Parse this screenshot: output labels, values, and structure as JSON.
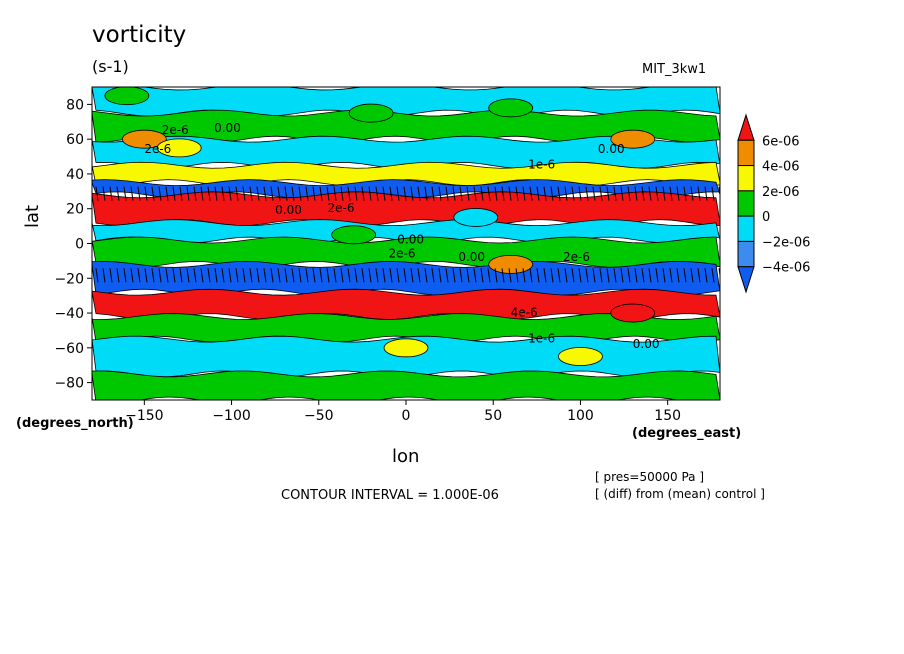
{
  "chart_data": {
    "type": "heatmap",
    "title": "vorticity",
    "units": "(s-1)",
    "dataset": "MIT_3kw1",
    "xlabel": "lon",
    "ylabel": "lat",
    "x_units": "(degrees_east)",
    "y_units": "(degrees_north)",
    "xlim": [
      -180,
      180
    ],
    "ylim": [
      -90,
      90
    ],
    "x_ticks": [
      -150,
      -100,
      -50,
      0,
      50,
      100,
      150
    ],
    "y_ticks": [
      80,
      60,
      40,
      20,
      0,
      -20,
      -40,
      -60,
      -80
    ],
    "contour_interval": "CONTOUR INTERVAL = 1.000E-06",
    "annotations": [
      "[ pres=50000 Pa ]",
      "[ (diff) from (mean) control ]"
    ],
    "contour_labels": [
      "2e-6",
      "0.00",
      "2e-6",
      "0.00",
      "2e-6",
      "0.00",
      "2e-6",
      "0.00",
      "1e-6",
      "0.00",
      "2e-6",
      "4e-6",
      "1e-6",
      "0.00"
    ],
    "legend": {
      "placement": "right",
      "labels": [
        "6e-06",
        "4e-06",
        "2e-06",
        "0",
        "-2e-06",
        "-4e-06"
      ],
      "colors": [
        "#0f5cf0",
        "#3c8cf0",
        "#00dcf8",
        "#00c800",
        "#f8f800",
        "#f08c00",
        "#f01414"
      ]
    },
    "bands": [
      {
        "lat": [
          75,
          90
        ],
        "value": -1e-06
      },
      {
        "lat": [
          60,
          75
        ],
        "value": 1e-06
      },
      {
        "lat": [
          45,
          60
        ],
        "value": -1e-06
      },
      {
        "lat": [
          35,
          45
        ],
        "value": 3e-06
      },
      {
        "lat": [
          28,
          35
        ],
        "value": -5e-06
      },
      {
        "lat": [
          12,
          28
        ],
        "value": 6e-06
      },
      {
        "lat": [
          2,
          12
        ],
        "value": -1e-06
      },
      {
        "lat": [
          -12,
          2
        ],
        "value": 1e-06
      },
      {
        "lat": [
          -28,
          -12
        ],
        "value": -5e-06
      },
      {
        "lat": [
          -42,
          -28
        ],
        "value": 6e-06
      },
      {
        "lat": [
          -55,
          -42
        ],
        "value": 1e-06
      },
      {
        "lat": [
          -75,
          -55
        ],
        "value": -1e-06
      },
      {
        "lat": [
          -90,
          -75
        ],
        "value": 1e-06
      }
    ],
    "features": [
      {
        "lon": -150,
        "lat": 60,
        "value": 4e-06
      },
      {
        "lon": -130,
        "lat": 55,
        "value": 3e-06
      },
      {
        "lon": 130,
        "lat": 60,
        "value": 4e-06
      },
      {
        "lon": 60,
        "lat": -12,
        "value": 4e-06
      },
      {
        "lon": 0,
        "lat": -60,
        "value": 2e-06
      },
      {
        "lon": 100,
        "lat": -65,
        "value": 3e-06
      },
      {
        "lon": 130,
        "lat": -40,
        "value": 6e-06
      },
      {
        "lon": -30,
        "lat": 5,
        "value": 1e-06
      },
      {
        "lon": 40,
        "lat": 15,
        "value": -2e-06
      },
      {
        "lon": -160,
        "lat": 85,
        "value": 1e-06
      },
      {
        "lon": -20,
        "lat": 75,
        "value": 1e-06
      },
      {
        "lon": 60,
        "lat": 78,
        "value": 1e-06
      }
    ]
  }
}
